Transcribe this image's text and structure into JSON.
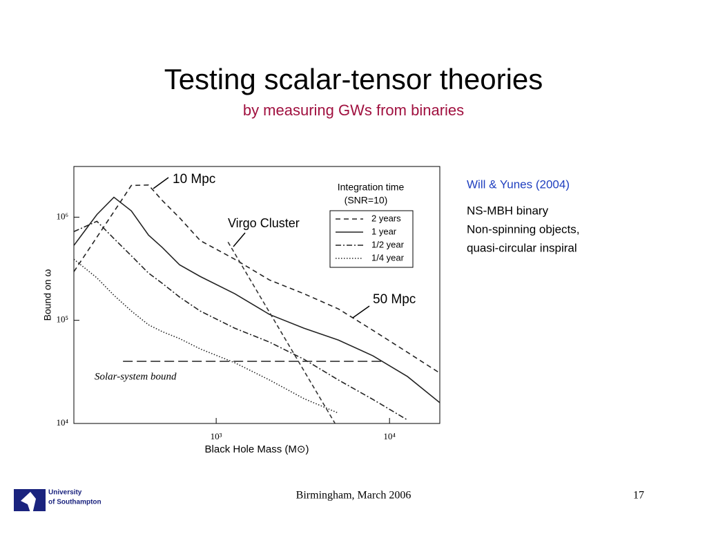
{
  "slide": {
    "title": "Testing scalar-tensor theories",
    "subtitle": "by measuring GWs from binaries",
    "reference": "Will & Yunes (2004)",
    "notes": [
      "NS-MBH binary",
      "Non-spinning objects,",
      "quasi-circular inspiral"
    ],
    "footer": "Birmingham, March 2006",
    "page": "17",
    "logo": [
      "University",
      "of Southampton"
    ]
  },
  "chart_data": {
    "type": "line",
    "log_x": true,
    "log_y": true,
    "x_label": "Black Hole Mass (M⊙)",
    "y_label": "Bound on ω",
    "xlim": [
      151,
      19500
    ],
    "ylim": [
      10000,
      3100000
    ],
    "xticks": [
      {
        "value": 1000,
        "label": "10³"
      },
      {
        "value": 10000,
        "label": "10⁴"
      }
    ],
    "yticks": [
      {
        "value": 10000,
        "label": "10⁴"
      },
      {
        "value": 100000,
        "label": "10⁵"
      },
      {
        "value": 1000000,
        "label": "10⁶"
      }
    ],
    "legend_title": [
      "Integration time",
      "(SNR=10)"
    ],
    "legend": "upper right",
    "x": [
      151,
      205,
      257,
      324,
      407,
      489,
      615,
      809,
      1280,
      2030,
      3210,
      5070,
      8020,
      12700,
      19500
    ],
    "series": [
      {
        "name": "2 years",
        "color": "#222222",
        "dash": "7,5",
        "values": [
          296000,
          640000,
          1130000,
          2030000,
          2050000,
          1450000,
          985000,
          593000,
          391000,
          246000,
          181000,
          129000,
          80000,
          48900,
          30800
        ]
      },
      {
        "name": "1 year",
        "color": "#222222",
        "dash": "none",
        "values": [
          532000,
          1060000,
          1560000,
          1150000,
          670000,
          508000,
          345000,
          266000,
          181000,
          114000,
          83800,
          64400,
          45300,
          28500,
          15900
        ]
      },
      {
        "name": "1/2 year",
        "color": "#222222",
        "dash": "8,3,2,3",
        "values": [
          724000,
          912000,
          621000,
          422000,
          287000,
          228000,
          168000,
          123000,
          83800,
          61500,
          41900,
          26400,
          17100,
          10800,
          null
        ]
      },
      {
        "name": "1/4 year",
        "color": "#222222",
        "dash": "1.5,2.5",
        "values": [
          391000,
          258000,
          175000,
          123000,
          90500,
          77600,
          66500,
          52800,
          38800,
          26400,
          17400,
          12600,
          null,
          null,
          null
        ]
      }
    ],
    "reference_lines": [
      {
        "name": "Virgo Cluster",
        "x": [
          1170,
          4850
        ],
        "y": [
          574000,
          10000
        ]
      },
      {
        "name": "Solar-system bound",
        "x": [
          290,
          8950
        ],
        "y": [
          40000,
          40000
        ]
      }
    ],
    "annotations": [
      "10 Mpc",
      "50 Mpc"
    ]
  }
}
